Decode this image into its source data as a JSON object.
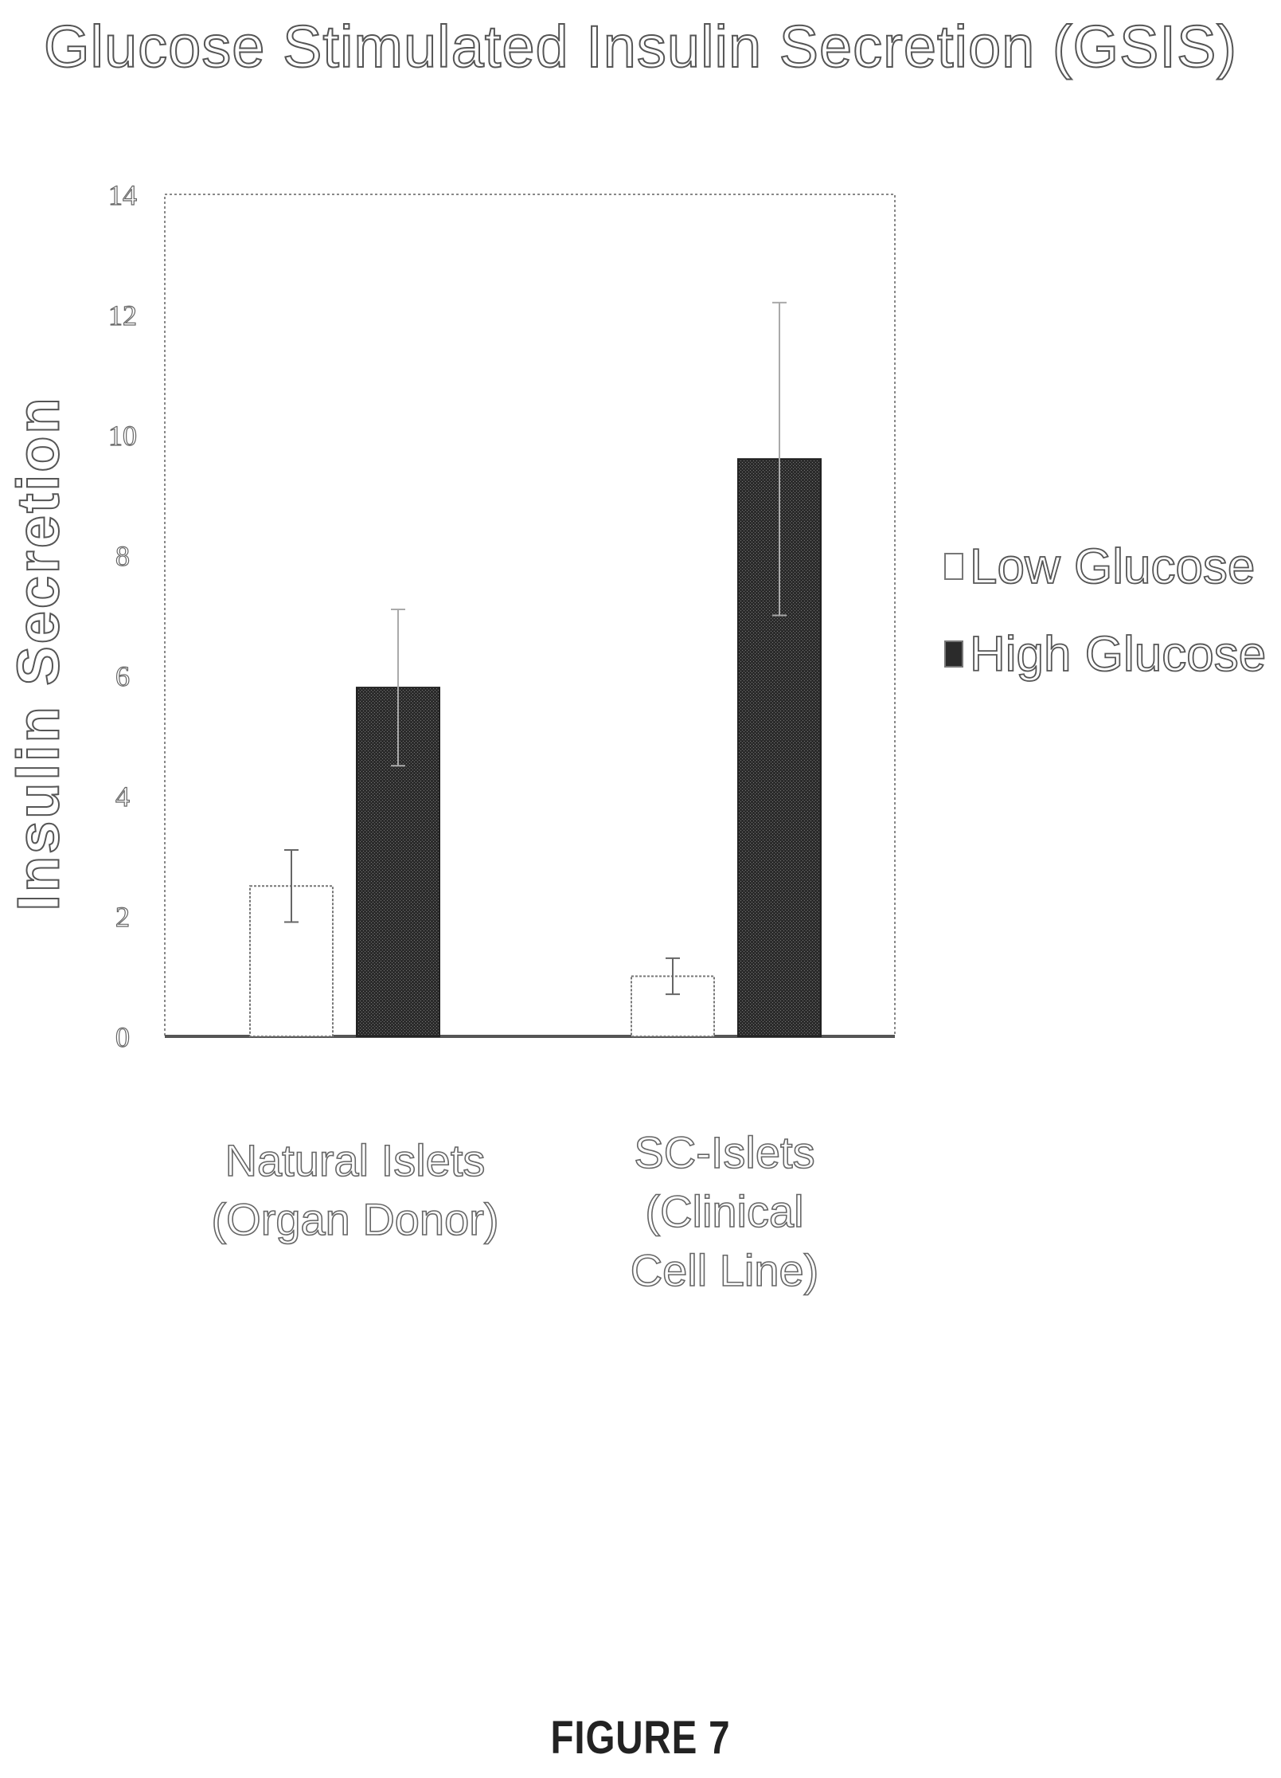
{
  "chart_data": {
    "type": "bar",
    "title": "Glucose Stimulated Insulin Secretion (GSIS)",
    "ylabel": "Insulin Secretion",
    "xlabel": "",
    "ylim": [
      0,
      14
    ],
    "yticks": [
      "0",
      "2",
      "4",
      "6",
      "8",
      "10",
      "12",
      "14"
    ],
    "categories": [
      [
        "Natural Islets",
        "(Organ Donor)"
      ],
      [
        "SC-Islets",
        "(Clinical",
        "Cell Line)"
      ]
    ],
    "series": [
      {
        "name": "Low Glucose",
        "values": [
          2.5,
          1.0
        ],
        "errors": [
          0.6,
          0.3
        ],
        "color": "#ffffff"
      },
      {
        "name": "High Glucose",
        "values": [
          5.8,
          9.6
        ],
        "errors": [
          1.3,
          2.6
        ],
        "color": "#2b2b2b"
      }
    ],
    "legend_position": "right",
    "grid": false
  },
  "figure_label": "FIGURE 7"
}
